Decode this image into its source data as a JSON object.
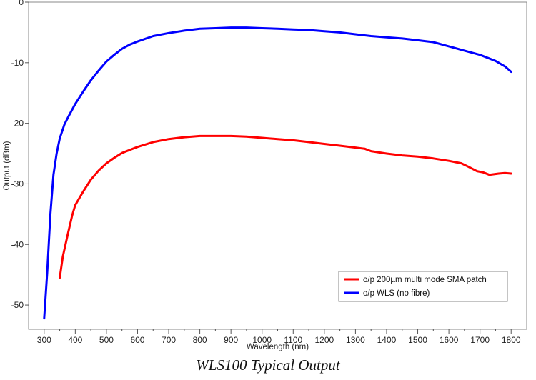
{
  "caption": "WLS100 Typical Output",
  "chart_data": {
    "type": "line",
    "title": "",
    "xlabel": "Wavelength  (nm)",
    "ylabel": "Output (dBm)",
    "xlim": [
      250,
      1850
    ],
    "ylim": [
      -54,
      0
    ],
    "xticks": [
      300,
      400,
      500,
      600,
      700,
      800,
      900,
      1000,
      1100,
      1200,
      1300,
      1400,
      1500,
      1600,
      1700,
      1800
    ],
    "xminor_step": 50,
    "yticks": [
      0,
      -10,
      -20,
      -30,
      -40,
      -50
    ],
    "grid": false,
    "legend_position": "bottom-right",
    "series": [
      {
        "name": "o/p 200µm multi mode SMA patch",
        "color": "#ff0000",
        "x": [
          350,
          360,
          375,
          390,
          400,
          425,
          450,
          475,
          500,
          525,
          550,
          575,
          600,
          650,
          700,
          750,
          800,
          850,
          900,
          950,
          1000,
          1050,
          1100,
          1150,
          1200,
          1250,
          1300,
          1330,
          1350,
          1400,
          1450,
          1500,
          1550,
          1600,
          1640,
          1660,
          1690,
          1710,
          1730,
          1760,
          1780,
          1800
        ],
        "y": [
          -45.5,
          -42,
          -38.5,
          -35.2,
          -33.5,
          -31.3,
          -29.3,
          -27.8,
          -26.6,
          -25.7,
          -24.9,
          -24.4,
          -23.9,
          -23.1,
          -22.6,
          -22.3,
          -22.1,
          -22.1,
          -22.1,
          -22.2,
          -22.4,
          -22.6,
          -22.8,
          -23.1,
          -23.4,
          -23.7,
          -24.0,
          -24.2,
          -24.6,
          -25.0,
          -25.3,
          -25.5,
          -25.8,
          -26.2,
          -26.6,
          -27.1,
          -27.9,
          -28.1,
          -28.5,
          -28.3,
          -28.2,
          -28.3
        ]
      },
      {
        "name": "o/p WLS (no fibre)",
        "color": "#0000ff",
        "x": [
          300,
          310,
          320,
          330,
          340,
          350,
          365,
          380,
          400,
          425,
          450,
          475,
          500,
          525,
          550,
          575,
          600,
          650,
          700,
          750,
          800,
          850,
          900,
          950,
          1000,
          1050,
          1100,
          1150,
          1200,
          1250,
          1300,
          1350,
          1400,
          1450,
          1500,
          1550,
          1600,
          1650,
          1700,
          1750,
          1780,
          1800
        ],
        "y": [
          -52.2,
          -44.5,
          -35,
          -28.5,
          -25,
          -22.5,
          -20.2,
          -18.7,
          -16.8,
          -14.8,
          -12.9,
          -11.3,
          -9.8,
          -8.7,
          -7.7,
          -7.0,
          -6.5,
          -5.6,
          -5.1,
          -4.7,
          -4.4,
          -4.3,
          -4.2,
          -4.2,
          -4.3,
          -4.4,
          -4.5,
          -4.6,
          -4.8,
          -5.0,
          -5.3,
          -5.6,
          -5.8,
          -6.0,
          -6.3,
          -6.6,
          -7.3,
          -8.0,
          -8.7,
          -9.7,
          -10.6,
          -11.5
        ]
      }
    ]
  }
}
